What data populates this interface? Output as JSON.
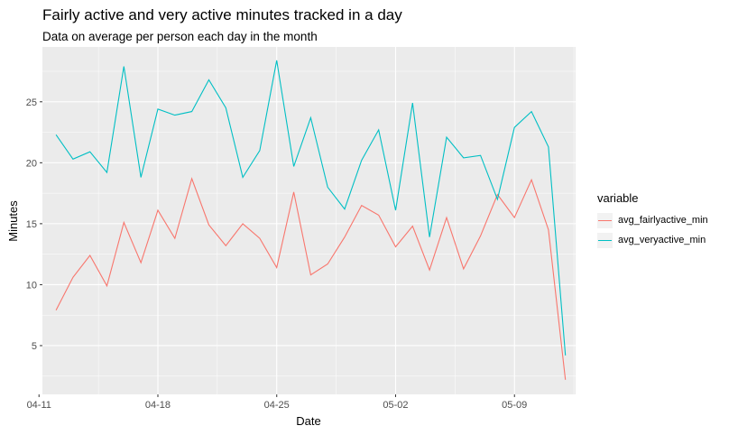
{
  "chart_data": {
    "type": "line",
    "title": "Fairly active and very active minutes tracked in a day",
    "subtitle": "Data on average per person each day in the month",
    "xlabel": "Date",
    "ylabel": "Minutes",
    "x": [
      "04-12",
      "04-13",
      "04-14",
      "04-15",
      "04-16",
      "04-17",
      "04-18",
      "04-19",
      "04-20",
      "04-21",
      "04-22",
      "04-23",
      "04-24",
      "04-25",
      "04-26",
      "04-27",
      "04-28",
      "04-29",
      "04-30",
      "05-01",
      "05-02",
      "05-03",
      "05-04",
      "05-05",
      "05-06",
      "05-07",
      "05-08",
      "05-09",
      "05-10",
      "05-11",
      "05-12"
    ],
    "x_ticks": [
      "04-11",
      "04-18",
      "04-25",
      "05-02",
      "05-09"
    ],
    "y_ticks": [
      5,
      10,
      15,
      20,
      25
    ],
    "ylim": [
      1.0,
      29.5
    ],
    "xlim_days": [
      -0.8,
      30.6
    ],
    "series": [
      {
        "name": "avg_fairlyactive_min",
        "color": "#F8766D",
        "values": [
          7.9,
          10.6,
          12.4,
          9.9,
          15.1,
          11.8,
          16.1,
          13.8,
          18.7,
          14.9,
          13.2,
          15.0,
          13.8,
          11.4,
          17.6,
          10.8,
          11.7,
          13.9,
          16.5,
          15.7,
          13.1,
          14.8,
          11.2,
          15.5,
          11.3,
          14.0,
          17.4,
          15.5,
          18.6,
          14.5,
          2.2
        ]
      },
      {
        "name": "avg_veryactive_min",
        "color": "#00BFC4",
        "values": [
          22.3,
          20.3,
          20.9,
          19.2,
          27.9,
          18.8,
          24.4,
          23.9,
          24.2,
          26.8,
          24.5,
          18.8,
          21.0,
          28.4,
          19.7,
          23.7,
          18.0,
          16.2,
          20.2,
          22.7,
          16.1,
          24.9,
          13.9,
          22.1,
          20.4,
          20.6,
          17.0,
          22.9,
          24.2,
          21.3,
          4.2
        ]
      }
    ],
    "legend": {
      "title": "variable",
      "position": "right"
    },
    "grid": true
  }
}
